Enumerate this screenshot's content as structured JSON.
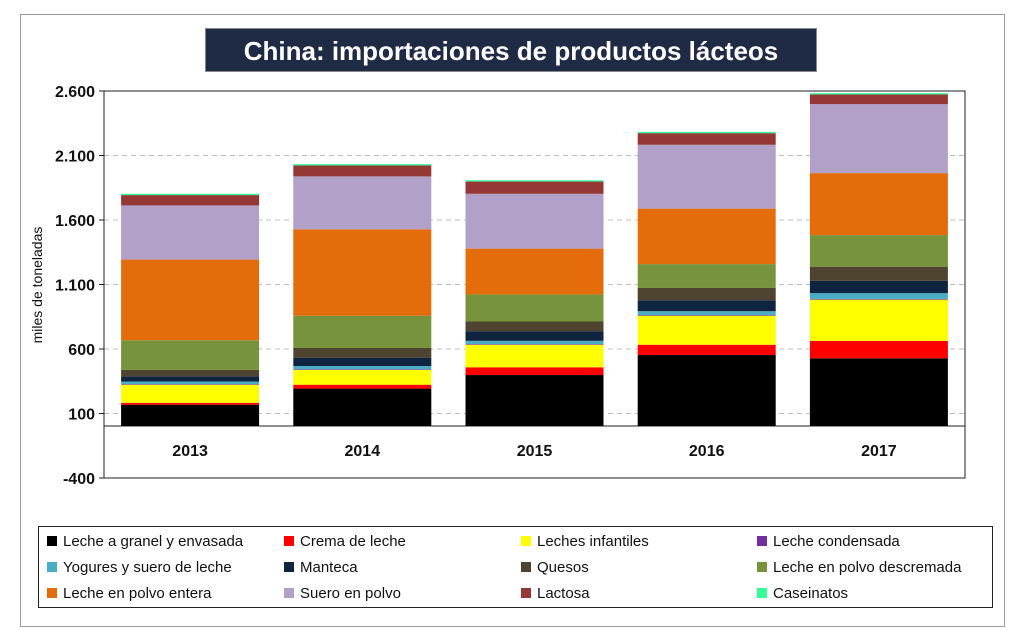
{
  "chart_data": {
    "type": "bar",
    "stacked": true,
    "title": "China: importaciones de productos lácteos",
    "ylabel": "miles de toneladas",
    "ylim": [
      -400,
      2600
    ],
    "yticks": [
      2600,
      2100,
      1600,
      1100,
      600,
      100,
      -400
    ],
    "ytick_labels": [
      "2.600",
      "2.100",
      "1.600",
      "1.100",
      "600",
      "100",
      "-400"
    ],
    "categories": [
      "2013",
      "2014",
      "2015",
      "2016",
      "2017"
    ],
    "grid": "horizontal dashed",
    "legend_position": "bottom",
    "series": [
      {
        "name": "Leche a granel y envasada",
        "color": "#000000",
        "values": [
          165,
          290,
          395,
          550,
          525
        ]
      },
      {
        "name": "Crema de leche",
        "color": "#ff0000",
        "values": [
          15,
          30,
          60,
          80,
          135
        ]
      },
      {
        "name": "Leches infantiles",
        "color": "#ffff00",
        "values": [
          140,
          115,
          175,
          225,
          320
        ]
      },
      {
        "name": "Leche condensada",
        "color": "#7030a0",
        "values": [
          5,
          5,
          5,
          5,
          5
        ]
      },
      {
        "name": "Yogures y suero de leche",
        "color": "#4bacc6",
        "values": [
          20,
          25,
          25,
          30,
          45
        ]
      },
      {
        "name": "Manteca",
        "color": "#0f243e",
        "values": [
          40,
          65,
          75,
          85,
          95
        ]
      },
      {
        "name": "Quesos",
        "color": "#4f4430",
        "values": [
          50,
          75,
          75,
          95,
          110
        ]
      },
      {
        "name": "Leche en polvo descremada",
        "color": "#77933c",
        "values": [
          230,
          250,
          210,
          185,
          245
        ]
      },
      {
        "name": "Leche en polvo entera",
        "color": "#e46c0a",
        "values": [
          625,
          670,
          355,
          430,
          480
        ]
      },
      {
        "name": "Suero en polvo",
        "color": "#b1a0c7",
        "values": [
          420,
          410,
          425,
          495,
          535
        ]
      },
      {
        "name": "Lactosa",
        "color": "#953735",
        "values": [
          80,
          85,
          95,
          90,
          75
        ]
      },
      {
        "name": "Caseinatos",
        "color": "#33ff99",
        "values": [
          10,
          10,
          10,
          10,
          10
        ]
      }
    ]
  }
}
